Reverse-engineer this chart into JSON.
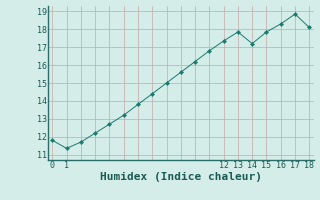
{
  "x": [
    0,
    1,
    2,
    3,
    4,
    5,
    6,
    7,
    8,
    9,
    10,
    11,
    12,
    13,
    14,
    15,
    16,
    17,
    18
  ],
  "y": [
    11.8,
    11.35,
    11.7,
    12.2,
    12.7,
    13.2,
    13.8,
    14.4,
    15.0,
    15.6,
    16.2,
    16.8,
    17.35,
    17.85,
    17.2,
    17.85,
    18.3,
    18.85,
    18.1
  ],
  "line_color": "#1a7a6e",
  "marker_color": "#1a7a6e",
  "bg_color": "#d5ede8",
  "grid_color": "#c4a8a8",
  "xlabel": "Humidex (Indice chaleur)",
  "xlabel_fontsize": 8,
  "ylabel_ticks": [
    11,
    12,
    13,
    14,
    15,
    16,
    17,
    18,
    19
  ],
  "x_grid_ticks": [
    0,
    1,
    2,
    3,
    4,
    5,
    6,
    7,
    8,
    9,
    10,
    11,
    12,
    13,
    14,
    15,
    16,
    17,
    18
  ],
  "xtick_labels_pos": [
    0,
    1,
    12,
    13,
    14,
    15,
    16,
    17,
    18
  ],
  "xlim": [
    -0.3,
    18.3
  ],
  "ylim": [
    10.7,
    19.3
  ]
}
